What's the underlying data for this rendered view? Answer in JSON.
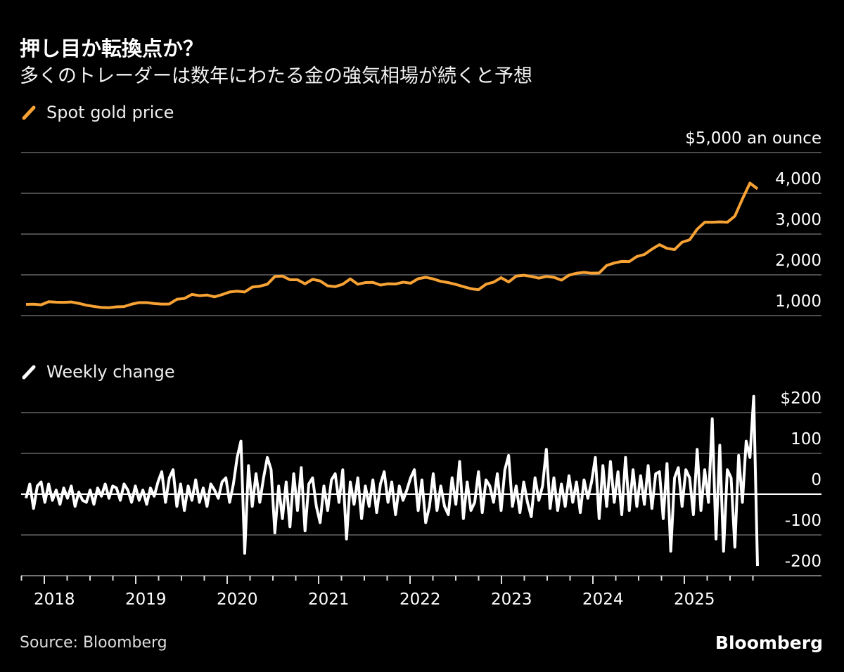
{
  "title": "押し目か転換点か？",
  "subtitle": "多くのトレーダーは数年にわたる金の強気相場が続くと予想",
  "source": "Source: Bloomberg",
  "logo": "Bloomberg",
  "colors": {
    "gold": "#f7a234",
    "weekly": "#ffffff",
    "grid": "#666666",
    "background": "#000000"
  },
  "chart_data": [
    {
      "type": "line",
      "legend": "Spot gold price",
      "unit_label": "$5,000 an ounce",
      "ylim": [
        1000,
        5000
      ],
      "yticks": [
        "1,000",
        "2,000",
        "3,000",
        "4,000"
      ],
      "x_start": "2017-10",
      "x_end": "2025-10",
      "frequency": "monthly",
      "values": [
        1275,
        1280,
        1265,
        1340,
        1330,
        1325,
        1335,
        1300,
        1255,
        1225,
        1200,
        1195,
        1215,
        1222,
        1280,
        1320,
        1320,
        1295,
        1283,
        1285,
        1400,
        1420,
        1520,
        1490,
        1505,
        1460,
        1515,
        1580,
        1600,
        1580,
        1700,
        1720,
        1770,
        1960,
        1970,
        1880,
        1880,
        1780,
        1890,
        1850,
        1730,
        1710,
        1770,
        1900,
        1770,
        1810,
        1815,
        1750,
        1780,
        1775,
        1820,
        1795,
        1905,
        1940,
        1900,
        1840,
        1810,
        1765,
        1710,
        1660,
        1635,
        1770,
        1820,
        1930,
        1825,
        1970,
        1990,
        1960,
        1920,
        1960,
        1940,
        1870,
        1990,
        2040,
        2060,
        2040,
        2045,
        2230,
        2290,
        2330,
        2325,
        2450,
        2500,
        2630,
        2740,
        2650,
        2620,
        2800,
        2860,
        3120,
        3290,
        3290,
        3300,
        3290,
        3440,
        3860,
        4250,
        4110
      ]
    },
    {
      "type": "line",
      "legend": "Weekly change",
      "ylim": [
        -200,
        200
      ],
      "yticks": [
        "$200",
        "100",
        "0",
        "-100",
        "-200"
      ],
      "x_start": "2017-10",
      "x_end": "2025-10",
      "xticks": [
        "2018",
        "2019",
        "2020",
        "2021",
        "2022",
        "2023",
        "2024",
        "2025"
      ],
      "values": [
        -10,
        25,
        -35,
        20,
        30,
        -20,
        25,
        -15,
        10,
        -25,
        15,
        -10,
        20,
        -30,
        5,
        -15,
        -20,
        10,
        -25,
        15,
        -5,
        25,
        -10,
        20,
        15,
        -15,
        25,
        10,
        -20,
        20,
        -15,
        10,
        -25,
        15,
        -5,
        30,
        55,
        -20,
        40,
        60,
        -30,
        25,
        -40,
        20,
        -15,
        35,
        -20,
        15,
        -30,
        25,
        10,
        -10,
        30,
        40,
        -20,
        25,
        90,
        130,
        -145,
        70,
        -30,
        50,
        -20,
        40,
        90,
        60,
        -95,
        20,
        -60,
        30,
        -80,
        50,
        -40,
        65,
        -90,
        25,
        40,
        -30,
        -70,
        20,
        -40,
        35,
        50,
        -20,
        60,
        -110,
        30,
        -25,
        40,
        -60,
        20,
        -30,
        35,
        -45,
        25,
        55,
        -20,
        30,
        -50,
        20,
        -15,
        10,
        40,
        60,
        -40,
        35,
        -70,
        -30,
        50,
        -40,
        20,
        -30,
        -50,
        40,
        -25,
        80,
        -60,
        30,
        -40,
        -20,
        55,
        -45,
        35,
        20,
        -20,
        50,
        -40,
        60,
        95,
        -30,
        20,
        -45,
        30,
        -20,
        -55,
        40,
        -15,
        20,
        110,
        -35,
        40,
        -40,
        25,
        -30,
        45,
        -20,
        30,
        -45,
        35,
        -10,
        30,
        90,
        -60,
        70,
        -30,
        80,
        -20,
        55,
        -50,
        90,
        -40,
        60,
        -30,
        45,
        -25,
        70,
        -35,
        50,
        55,
        -60,
        75,
        -140,
        40,
        65,
        -30,
        60,
        40,
        -50,
        110,
        -40,
        60,
        -20,
        185,
        -110,
        120,
        -140,
        60,
        40,
        -130,
        95,
        -20,
        130,
        90,
        240,
        -176
      ]
    }
  ]
}
